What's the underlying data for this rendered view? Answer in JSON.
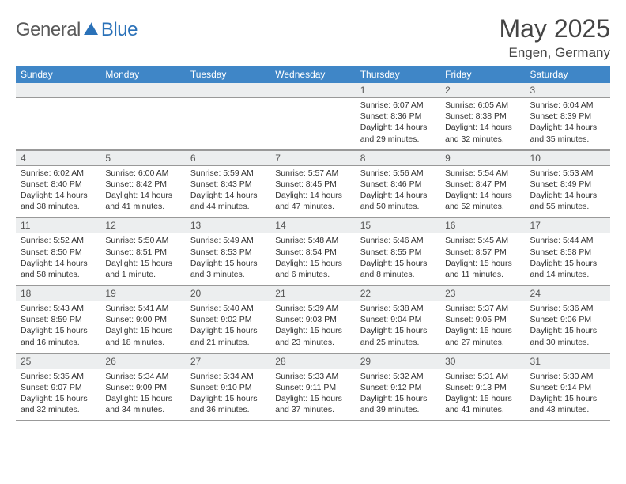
{
  "header": {
    "logo_word1": "General",
    "logo_word2": "Blue",
    "logo_icon_color": "#2a71b8",
    "month_title": "May 2025",
    "location": "Engen, Germany"
  },
  "theme": {
    "header_bg": "#3f86c7",
    "header_text": "#ffffff",
    "daynum_bg": "#eceeef",
    "rule_color": "#2a71b8",
    "grid_color": "#999999"
  },
  "weekdays": [
    "Sunday",
    "Monday",
    "Tuesday",
    "Wednesday",
    "Thursday",
    "Friday",
    "Saturday"
  ],
  "weeks": [
    [
      null,
      null,
      null,
      null,
      {
        "n": "1",
        "sr": "Sunrise: 6:07 AM",
        "ss": "Sunset: 8:36 PM",
        "d1": "Daylight: 14 hours",
        "d2": "and 29 minutes."
      },
      {
        "n": "2",
        "sr": "Sunrise: 6:05 AM",
        "ss": "Sunset: 8:38 PM",
        "d1": "Daylight: 14 hours",
        "d2": "and 32 minutes."
      },
      {
        "n": "3",
        "sr": "Sunrise: 6:04 AM",
        "ss": "Sunset: 8:39 PM",
        "d1": "Daylight: 14 hours",
        "d2": "and 35 minutes."
      }
    ],
    [
      {
        "n": "4",
        "sr": "Sunrise: 6:02 AM",
        "ss": "Sunset: 8:40 PM",
        "d1": "Daylight: 14 hours",
        "d2": "and 38 minutes."
      },
      {
        "n": "5",
        "sr": "Sunrise: 6:00 AM",
        "ss": "Sunset: 8:42 PM",
        "d1": "Daylight: 14 hours",
        "d2": "and 41 minutes."
      },
      {
        "n": "6",
        "sr": "Sunrise: 5:59 AM",
        "ss": "Sunset: 8:43 PM",
        "d1": "Daylight: 14 hours",
        "d2": "and 44 minutes."
      },
      {
        "n": "7",
        "sr": "Sunrise: 5:57 AM",
        "ss": "Sunset: 8:45 PM",
        "d1": "Daylight: 14 hours",
        "d2": "and 47 minutes."
      },
      {
        "n": "8",
        "sr": "Sunrise: 5:56 AM",
        "ss": "Sunset: 8:46 PM",
        "d1": "Daylight: 14 hours",
        "d2": "and 50 minutes."
      },
      {
        "n": "9",
        "sr": "Sunrise: 5:54 AM",
        "ss": "Sunset: 8:47 PM",
        "d1": "Daylight: 14 hours",
        "d2": "and 52 minutes."
      },
      {
        "n": "10",
        "sr": "Sunrise: 5:53 AM",
        "ss": "Sunset: 8:49 PM",
        "d1": "Daylight: 14 hours",
        "d2": "and 55 minutes."
      }
    ],
    [
      {
        "n": "11",
        "sr": "Sunrise: 5:52 AM",
        "ss": "Sunset: 8:50 PM",
        "d1": "Daylight: 14 hours",
        "d2": "and 58 minutes."
      },
      {
        "n": "12",
        "sr": "Sunrise: 5:50 AM",
        "ss": "Sunset: 8:51 PM",
        "d1": "Daylight: 15 hours",
        "d2": "and 1 minute."
      },
      {
        "n": "13",
        "sr": "Sunrise: 5:49 AM",
        "ss": "Sunset: 8:53 PM",
        "d1": "Daylight: 15 hours",
        "d2": "and 3 minutes."
      },
      {
        "n": "14",
        "sr": "Sunrise: 5:48 AM",
        "ss": "Sunset: 8:54 PM",
        "d1": "Daylight: 15 hours",
        "d2": "and 6 minutes."
      },
      {
        "n": "15",
        "sr": "Sunrise: 5:46 AM",
        "ss": "Sunset: 8:55 PM",
        "d1": "Daylight: 15 hours",
        "d2": "and 8 minutes."
      },
      {
        "n": "16",
        "sr": "Sunrise: 5:45 AM",
        "ss": "Sunset: 8:57 PM",
        "d1": "Daylight: 15 hours",
        "d2": "and 11 minutes."
      },
      {
        "n": "17",
        "sr": "Sunrise: 5:44 AM",
        "ss": "Sunset: 8:58 PM",
        "d1": "Daylight: 15 hours",
        "d2": "and 14 minutes."
      }
    ],
    [
      {
        "n": "18",
        "sr": "Sunrise: 5:43 AM",
        "ss": "Sunset: 8:59 PM",
        "d1": "Daylight: 15 hours",
        "d2": "and 16 minutes."
      },
      {
        "n": "19",
        "sr": "Sunrise: 5:41 AM",
        "ss": "Sunset: 9:00 PM",
        "d1": "Daylight: 15 hours",
        "d2": "and 18 minutes."
      },
      {
        "n": "20",
        "sr": "Sunrise: 5:40 AM",
        "ss": "Sunset: 9:02 PM",
        "d1": "Daylight: 15 hours",
        "d2": "and 21 minutes."
      },
      {
        "n": "21",
        "sr": "Sunrise: 5:39 AM",
        "ss": "Sunset: 9:03 PM",
        "d1": "Daylight: 15 hours",
        "d2": "and 23 minutes."
      },
      {
        "n": "22",
        "sr": "Sunrise: 5:38 AM",
        "ss": "Sunset: 9:04 PM",
        "d1": "Daylight: 15 hours",
        "d2": "and 25 minutes."
      },
      {
        "n": "23",
        "sr": "Sunrise: 5:37 AM",
        "ss": "Sunset: 9:05 PM",
        "d1": "Daylight: 15 hours",
        "d2": "and 27 minutes."
      },
      {
        "n": "24",
        "sr": "Sunrise: 5:36 AM",
        "ss": "Sunset: 9:06 PM",
        "d1": "Daylight: 15 hours",
        "d2": "and 30 minutes."
      }
    ],
    [
      {
        "n": "25",
        "sr": "Sunrise: 5:35 AM",
        "ss": "Sunset: 9:07 PM",
        "d1": "Daylight: 15 hours",
        "d2": "and 32 minutes."
      },
      {
        "n": "26",
        "sr": "Sunrise: 5:34 AM",
        "ss": "Sunset: 9:09 PM",
        "d1": "Daylight: 15 hours",
        "d2": "and 34 minutes."
      },
      {
        "n": "27",
        "sr": "Sunrise: 5:34 AM",
        "ss": "Sunset: 9:10 PM",
        "d1": "Daylight: 15 hours",
        "d2": "and 36 minutes."
      },
      {
        "n": "28",
        "sr": "Sunrise: 5:33 AM",
        "ss": "Sunset: 9:11 PM",
        "d1": "Daylight: 15 hours",
        "d2": "and 37 minutes."
      },
      {
        "n": "29",
        "sr": "Sunrise: 5:32 AM",
        "ss": "Sunset: 9:12 PM",
        "d1": "Daylight: 15 hours",
        "d2": "and 39 minutes."
      },
      {
        "n": "30",
        "sr": "Sunrise: 5:31 AM",
        "ss": "Sunset: 9:13 PM",
        "d1": "Daylight: 15 hours",
        "d2": "and 41 minutes."
      },
      {
        "n": "31",
        "sr": "Sunrise: 5:30 AM",
        "ss": "Sunset: 9:14 PM",
        "d1": "Daylight: 15 hours",
        "d2": "and 43 minutes."
      }
    ]
  ]
}
